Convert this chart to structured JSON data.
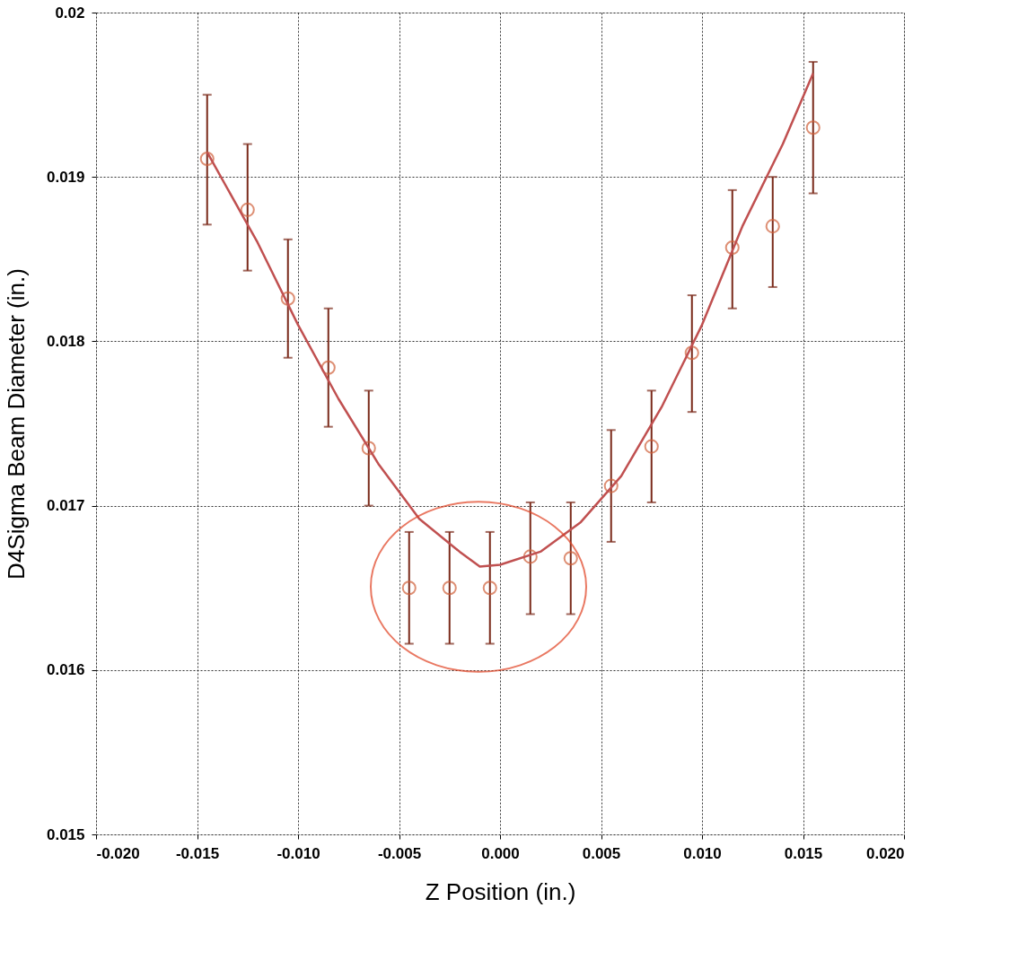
{
  "chart_data": {
    "type": "scatter",
    "xlabel": "Z Position (in.)",
    "ylabel": "D4Sigma Beam Diameter (in.)",
    "xlim": [
      -0.02,
      0.02
    ],
    "ylim": [
      0.015,
      0.02
    ],
    "xticks": [
      {
        "value": -0.02,
        "label": "-0.020"
      },
      {
        "value": -0.015,
        "label": "-0.015"
      },
      {
        "value": -0.01,
        "label": "-0.010"
      },
      {
        "value": -0.005,
        "label": "-0.005"
      },
      {
        "value": 0,
        "label": "0.000"
      },
      {
        "value": 0.005,
        "label": "0.005"
      },
      {
        "value": 0.01,
        "label": "0.010"
      },
      {
        "value": 0.015,
        "label": "0.015"
      },
      {
        "value": 0.02,
        "label": "0.020"
      }
    ],
    "yticks": [
      0.015,
      0.016,
      0.017,
      0.018,
      0.019,
      0.02
    ],
    "grid": true,
    "marker": "circle",
    "series": [
      {
        "color": "#d0603a",
        "x": [
          -0.0145,
          -0.0125,
          -0.0105,
          -0.0085,
          -0.0065,
          -0.0045,
          -0.0025,
          -0.0005,
          0.0015,
          0.0035,
          0.0055,
          0.0075,
          0.0095,
          0.0115,
          0.0135,
          0.0155
        ],
        "values": [
          0.01911,
          0.0188,
          0.01826,
          0.01784,
          0.01735,
          0.0165,
          0.0165,
          0.0165,
          0.01669,
          0.01668,
          0.01712,
          0.01736,
          0.01793,
          0.01857,
          0.0187,
          0.0193
        ],
        "errors": [
          [
            0.01871,
            0.0195
          ],
          [
            0.01843,
            0.0192
          ],
          [
            0.0179,
            0.01862
          ],
          [
            0.01748,
            0.0182
          ],
          [
            0.017,
            0.0177
          ],
          [
            0.01616,
            0.01684
          ],
          [
            0.01616,
            0.01684
          ],
          [
            0.01616,
            0.01684
          ],
          [
            0.01634,
            0.01702
          ],
          [
            0.01634,
            0.01702
          ],
          [
            0.01678,
            0.01746
          ],
          [
            0.01702,
            0.0177
          ],
          [
            0.01757,
            0.01828
          ],
          [
            0.0182,
            0.01892
          ],
          [
            0.01833,
            0.019
          ],
          [
            0.0189,
            0.0197
          ]
        ]
      },
      {
        "type": "line",
        "color": "#c05050",
        "line_style": "solid",
        "marker": "none",
        "x": [
          -0.0145,
          -0.012,
          -0.01,
          -0.008,
          -0.006,
          -0.004,
          -0.002,
          -0.001,
          0.0,
          0.002,
          0.004,
          0.006,
          0.008,
          0.01,
          0.012,
          0.014,
          0.0155
        ],
        "values": [
          0.01915,
          0.0186,
          0.0181,
          0.01765,
          0.01725,
          0.01692,
          0.01672,
          0.01663,
          0.01664,
          0.01672,
          0.0169,
          0.01718,
          0.0176,
          0.0181,
          0.0187,
          0.0192,
          0.01963
        ]
      }
    ]
  }
}
